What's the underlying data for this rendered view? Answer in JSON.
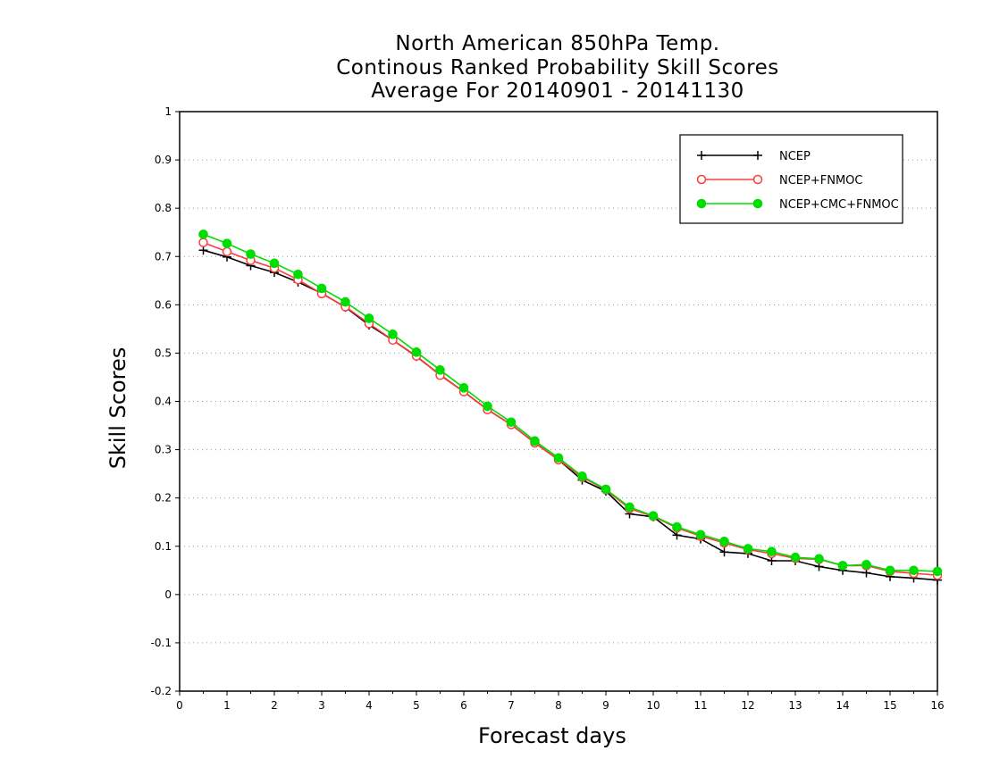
{
  "chart_data": {
    "type": "line",
    "title": [
      "North American 850hPa Temp.",
      "Continous Ranked Probability Skill Scores",
      "Average For 20140901 - 20141130"
    ],
    "xlabel": "Forecast days",
    "ylabel": "Skill Scores",
    "xlim": [
      0,
      16
    ],
    "ylim": [
      -0.2,
      1
    ],
    "xticks": [
      0,
      1,
      2,
      3,
      4,
      5,
      6,
      7,
      8,
      9,
      10,
      11,
      12,
      13,
      14,
      15,
      16
    ],
    "xtick_labels": [
      "0",
      "1",
      "2",
      "3",
      "4",
      "5",
      "6",
      "7",
      "8",
      "9",
      "10",
      "11",
      "12",
      "13",
      "14",
      "15",
      "16"
    ],
    "yticks": [
      -0.2,
      -0.1,
      0,
      0.1,
      0.2,
      0.3,
      0.4,
      0.5,
      0.6,
      0.7,
      0.8,
      0.9,
      1
    ],
    "ytick_labels": [
      "-0.2",
      "-0.1",
      "0",
      "0.1",
      "0.2",
      "0.3",
      "0.4",
      "0.5",
      "0.6",
      "0.7",
      "0.8",
      "0.9",
      "1"
    ],
    "grid": "horizontal dotted",
    "legend": "top-right",
    "x": [
      0.5,
      1,
      1.5,
      2,
      2.5,
      3,
      3.5,
      4,
      4.5,
      5,
      5.5,
      6,
      6.5,
      7,
      7.5,
      8,
      8.5,
      9,
      9.5,
      10,
      10.5,
      11,
      11.5,
      12,
      12.5,
      13,
      13.5,
      14,
      14.5,
      15,
      15.5,
      16
    ],
    "series": [
      {
        "name": "NCEP",
        "color": "#000000",
        "marker": "plus",
        "values": [
          0.713,
          0.699,
          0.681,
          0.667,
          0.647,
          0.624,
          0.595,
          0.558,
          0.527,
          0.493,
          0.455,
          0.42,
          0.383,
          0.352,
          0.314,
          0.279,
          0.237,
          0.214,
          0.167,
          0.161,
          0.123,
          0.115,
          0.088,
          0.085,
          0.07,
          0.07,
          0.058,
          0.05,
          0.045,
          0.037,
          0.034,
          0.03
        ]
      },
      {
        "name": "NCEP+FNMOC",
        "color": "#ff3b3b",
        "marker": "open-circle",
        "values": [
          0.729,
          0.71,
          0.692,
          0.676,
          0.652,
          0.623,
          0.596,
          0.561,
          0.527,
          0.494,
          0.454,
          0.42,
          0.383,
          0.352,
          0.314,
          0.279,
          0.243,
          0.217,
          0.178,
          0.162,
          0.138,
          0.121,
          0.107,
          0.093,
          0.085,
          0.075,
          0.073,
          0.06,
          0.06,
          0.048,
          0.044,
          0.04
        ]
      },
      {
        "name": "NCEP+CMC+FNMOC",
        "color": "#00dd00",
        "marker": "filled-circle",
        "values": [
          0.746,
          0.727,
          0.705,
          0.686,
          0.663,
          0.634,
          0.606,
          0.572,
          0.539,
          0.502,
          0.465,
          0.428,
          0.39,
          0.357,
          0.318,
          0.283,
          0.245,
          0.218,
          0.181,
          0.163,
          0.14,
          0.124,
          0.11,
          0.095,
          0.089,
          0.077,
          0.074,
          0.06,
          0.062,
          0.05,
          0.05,
          0.048
        ]
      }
    ]
  }
}
